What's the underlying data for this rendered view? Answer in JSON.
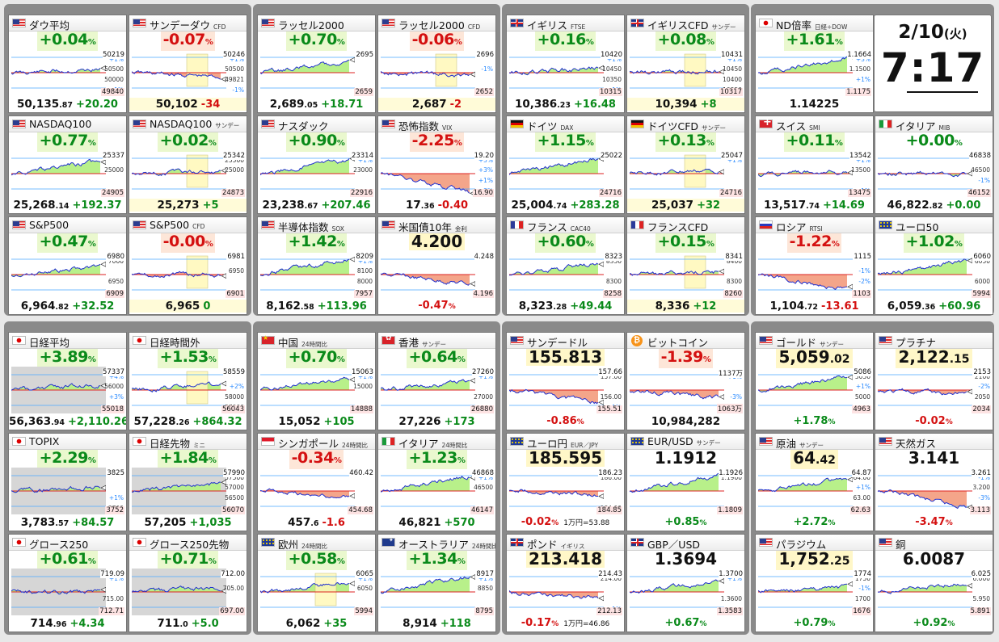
{
  "clock": {
    "date": "2/10",
    "weekday": "(火)",
    "time": "7:17"
  },
  "colors": {
    "up": "#0a8a1a",
    "down": "#d41010",
    "fill_up": "#b8f08a",
    "fill_down": "#f4a58a",
    "line": "#2030d0"
  },
  "tiles": [
    {
      "col": 0,
      "row": 0,
      "flag": "us",
      "name": "ダウ平均",
      "sub": "",
      "pct": "+0.04",
      "dir": "up",
      "trend": 0.2,
      "price": "50,135",
      "dec": ".87",
      "chg": "+20.20",
      "hi": "50219",
      "lo": "49840",
      "ticks": [
        "+1%",
        "50500",
        "50000",
        "-1%"
      ]
    },
    {
      "col": 1,
      "row": 0,
      "flag": "us",
      "name": "サンデーダウ",
      "sub": "CFD",
      "pct": "-0.07",
      "dir": "down",
      "trend": -0.3,
      "price": "50,102",
      "dec": "",
      "chg": "-34",
      "hi": "50246",
      "lo": "",
      "ticks": [
        "+1%",
        "50500",
        "49821",
        "-1%"
      ],
      "bar": true,
      "box": true
    },
    {
      "col": 2,
      "row": 0,
      "flag": "us",
      "name": "ラッセル2000",
      "sub": "",
      "pct": "+0.70",
      "dir": "up",
      "trend": 0.8,
      "price": "2,689",
      "dec": ".05",
      "chg": "+18.71",
      "hi": "2695",
      "lo": "2659",
      "ticks": [
        "",
        "",
        "",
        ""
      ]
    },
    {
      "col": 3,
      "row": 0,
      "flag": "us",
      "name": "ラッセル2000",
      "sub": "CFD",
      "pct": "-0.06",
      "dir": "down",
      "trend": -0.2,
      "price": "2,687",
      "dec": "",
      "chg": "-2",
      "hi": "2696",
      "lo": "2652",
      "ticks": [
        "",
        "-1%",
        "",
        ""
      ],
      "bar": true,
      "box": true
    },
    {
      "col": 4,
      "row": 0,
      "flag": "gb",
      "name": "イギリス",
      "sub": "FTSE",
      "pct": "+0.16",
      "dir": "up",
      "trend": 0.3,
      "price": "10,386",
      "dec": ".23",
      "chg": "+16.48",
      "hi": "10420",
      "lo": "10315",
      "ticks": [
        "+1%",
        "10450",
        "10350",
        "-1%"
      ]
    },
    {
      "col": 5,
      "row": 0,
      "flag": "gb",
      "name": "イギリスCFD",
      "sub": "サンデー",
      "pct": "+0.08",
      "dir": "up",
      "trend": 0.1,
      "price": "10,394",
      "dec": "",
      "chg": "+8",
      "hi": "10431",
      "lo": "10317",
      "ticks": [
        "+1%",
        "10450",
        "10400",
        "10350"
      ],
      "bar": true,
      "box": true
    },
    {
      "col": 6,
      "row": 0,
      "flag": "jp",
      "name": "ND倍率",
      "sub": "日経÷DOW",
      "pct": "+1.61",
      "dir": "up",
      "trend": 0.9,
      "price": "1.14225",
      "dec": "",
      "chg": "",
      "hi": "1.1664",
      "lo": "1.1175",
      "ticks": [
        "+3%",
        "1.1500",
        "+1%",
        ""
      ]
    },
    {
      "col": 0,
      "row": 1,
      "flag": "us",
      "name": "NASDAQ100",
      "sub": "",
      "pct": "+0.77",
      "dir": "up",
      "trend": 0.8,
      "price": "25,268",
      "dec": ".14",
      "chg": "+192.37",
      "hi": "25337",
      "lo": "24905",
      "ticks": [
        "",
        "25000",
        "",
        ""
      ]
    },
    {
      "col": 1,
      "row": 1,
      "flag": "us",
      "name": "NASDAQ100",
      "sub": "サンデー",
      "pct": "+0.02",
      "dir": "up",
      "trend": 0.1,
      "price": "25,273",
      "dec": "",
      "chg": "+5",
      "hi": "25342",
      "lo": "24873",
      "ticks": [
        "25500",
        "25000",
        "",
        ""
      ],
      "bar": true,
      "box": true
    },
    {
      "col": 2,
      "row": 1,
      "flag": "us",
      "name": "ナスダック",
      "sub": "",
      "pct": "+0.90",
      "dir": "up",
      "trend": 0.9,
      "price": "23,238",
      "dec": ".67",
      "chg": "+207.46",
      "hi": "23314",
      "lo": "22916",
      "ticks": [
        "+1%",
        "23000",
        "",
        ""
      ]
    },
    {
      "col": 3,
      "row": 1,
      "flag": "us",
      "name": "恐怖指数",
      "sub": "VIX",
      "pct": "-2.25",
      "dir": "down",
      "trend": -1.2,
      "price": "17",
      "dec": ".36",
      "chg": "-0.40",
      "hi": "19.20",
      "lo": "16.90",
      "ticks": [
        "+5%",
        "+3%",
        "+1%",
        "-3%"
      ],
      "red": true
    },
    {
      "col": 4,
      "row": 1,
      "flag": "de",
      "name": "ドイツ",
      "sub": "DAX",
      "pct": "+1.15",
      "dir": "up",
      "trend": 1.0,
      "price": "25,004",
      "dec": ".74",
      "chg": "+283.28",
      "hi": "25022",
      "lo": "24716",
      "ticks": [
        "",
        "",
        "",
        ""
      ]
    },
    {
      "col": 5,
      "row": 1,
      "flag": "de",
      "name": "ドイツCFD",
      "sub": "サンデー",
      "pct": "+0.13",
      "dir": "up",
      "trend": 0.2,
      "price": "25,037",
      "dec": "",
      "chg": "+32",
      "hi": "25047",
      "lo": "24716",
      "ticks": [
        "+1%",
        "",
        "",
        ""
      ],
      "bar": true,
      "box": true
    },
    {
      "col": 6,
      "row": 1,
      "flag": "ch",
      "name": "スイス",
      "sub": "SMI",
      "pct": "+0.11",
      "dir": "up",
      "trend": 0.1,
      "price": "13,517",
      "dec": ".74",
      "chg": "+14.69",
      "hi": "13542",
      "lo": "13475",
      "ticks": [
        "+1%",
        "13500",
        "",
        "-1%"
      ]
    },
    {
      "col": 7,
      "row": 1,
      "flag": "it",
      "name": "イタリア",
      "sub": "MIB",
      "pct": "+0.00",
      "dir": "flat",
      "trend": 0.0,
      "price": "46,822",
      "dec": ".82",
      "chg": "+0.00",
      "hi": "46838",
      "lo": "46152",
      "ticks": [
        "",
        "46500",
        "-1%",
        ""
      ]
    },
    {
      "col": 0,
      "row": 2,
      "flag": "us",
      "name": "S&P500",
      "sub": "",
      "pct": "+0.47",
      "dir": "up",
      "trend": 0.5,
      "price": "6,964",
      "dec": ".82",
      "chg": "+32.52",
      "hi": "6980",
      "lo": "6909",
      "ticks": [
        "7000",
        "",
        "6950",
        ""
      ]
    },
    {
      "col": 1,
      "row": 2,
      "flag": "us",
      "name": "S&P500",
      "sub": "CFD",
      "pct": "-0.00",
      "dir": "down",
      "trend": 0.0,
      "price": "6,965",
      "dec": "",
      "chg": "0",
      "hi": "6981",
      "lo": "6901",
      "ticks": [
        "",
        "6950",
        "",
        ""
      ],
      "bar": true,
      "box": true
    },
    {
      "col": 2,
      "row": 2,
      "flag": "us",
      "name": "半導体指数",
      "sub": "SOX",
      "pct": "+1.42",
      "dir": "up",
      "trend": 1.0,
      "price": "8,162",
      "dec": ".58",
      "chg": "+113.96",
      "hi": "8209",
      "lo": "7957",
      "ticks": [
        "+1%",
        "8100",
        "8000",
        ""
      ]
    },
    {
      "col": 3,
      "row": 2,
      "flag": "us",
      "name": "米国債10年",
      "sub": "金利",
      "pct": "-0.47",
      "dir": "down",
      "trend": -0.6,
      "bigprice": "4.200",
      "price": "",
      "dec": "",
      "chg": "",
      "hi": "4.248",
      "lo": "4.196",
      "ticks": [
        "",
        "",
        "",
        ""
      ],
      "footpct": "-0.47",
      "footdir": "down"
    },
    {
      "col": 4,
      "row": 2,
      "flag": "fr",
      "name": "フランス",
      "sub": "CAC40",
      "pct": "+0.60",
      "dir": "up",
      "trend": 0.7,
      "price": "8,323",
      "dec": ".28",
      "chg": "+49.44",
      "hi": "8323",
      "lo": "8258",
      "ticks": [
        "8350",
        "",
        "8300",
        ""
      ]
    },
    {
      "col": 5,
      "row": 2,
      "flag": "fr",
      "name": "フランスCFD",
      "sub": "",
      "pct": "+0.15",
      "dir": "up",
      "trend": 0.2,
      "price": "8,336",
      "dec": "",
      "chg": "+12",
      "hi": "8341",
      "lo": "8260",
      "ticks": [
        "8400",
        "",
        "8300",
        ""
      ],
      "bar": true,
      "box": true
    },
    {
      "col": 6,
      "row": 2,
      "flag": "ru",
      "name": "ロシア",
      "sub": "RTSI",
      "pct": "-1.22",
      "dir": "down",
      "trend": -1.0,
      "price": "1,104",
      "dec": ".72",
      "chg": "-13.61",
      "hi": "1115",
      "lo": "1103",
      "ticks": [
        "",
        "-1%",
        "-2%",
        ""
      ]
    },
    {
      "col": 7,
      "row": 2,
      "flag": "eu",
      "name": "ユーロ50",
      "sub": "",
      "pct": "+1.02",
      "dir": "up",
      "trend": 0.9,
      "price": "6,059",
      "dec": ".36",
      "chg": "+60.96",
      "hi": "6060",
      "lo": "5994",
      "ticks": [
        "6050",
        "",
        "6000",
        ""
      ]
    },
    {
      "col": 0,
      "row": 3,
      "flag": "jp",
      "name": "日経平均",
      "sub": "",
      "pct": "+3.89",
      "dir": "up",
      "trend": 0.3,
      "price": "56,363",
      "dec": ".94",
      "chg": "+2,110.26",
      "hi": "57337",
      "lo": "55018",
      "ticks": [
        "+4%",
        "56000",
        "+3%",
        ""
      ],
      "dim": true
    },
    {
      "col": 1,
      "row": 3,
      "flag": "jp",
      "name": "日経時間外",
      "sub": "",
      "pct": "+1.53",
      "dir": "up",
      "trend": 0.4,
      "price": "57,228",
      "dec": ".26",
      "chg": "+864.32",
      "hi": "58559",
      "lo": "56043",
      "ticks": [
        "",
        "+2%",
        "58000",
        "57000"
      ],
      "box": true
    },
    {
      "col": 2,
      "row": 3,
      "flag": "cn",
      "name": "中国",
      "sub": "24時間比",
      "pct": "+0.70",
      "dir": "up",
      "trend": 0.8,
      "price": "15,052",
      "dec": "",
      "chg": "+105",
      "hi": "15063",
      "lo": "14888",
      "ticks": [
        "+1%",
        "15000",
        "",
        ""
      ]
    },
    {
      "col": 3,
      "row": 3,
      "flag": "hk",
      "name": "香港",
      "sub": "サンデー",
      "pct": "+0.64",
      "dir": "up",
      "trend": 0.6,
      "price": "27,226",
      "dec": "",
      "chg": "+173",
      "hi": "27260",
      "lo": "26880",
      "ticks": [
        "+1%",
        "",
        "27000",
        ""
      ]
    },
    {
      "col": 4,
      "row": 3,
      "flag": "us",
      "name": "サンデードル",
      "sub": "",
      "pct": "-0.86",
      "dir": "down",
      "trend": -0.8,
      "bigprice": "155.813",
      "price": "",
      "dec": "",
      "chg": "",
      "hi": "157.66",
      "lo": "155.51",
      "ticks": [
        "157.00",
        "",
        "156.00",
        "-1%"
      ],
      "footpct": "-0.86",
      "footdir": "down"
    },
    {
      "col": 5,
      "row": 3,
      "flag": "btc",
      "name": "ビットコイン",
      "sub": "",
      "pct": "-1.39",
      "dir": "down",
      "trend": -0.5,
      "price": "10,984,282",
      "dec": "",
      "chg": "",
      "hi": "1137万",
      "lo": "1063万",
      "ticks": [
        "+1%",
        "",
        "-3%",
        ""
      ]
    },
    {
      "col": 6,
      "row": 3,
      "flag": "us",
      "name": "ゴールド",
      "sub": "サンデー",
      "pct": "",
      "dir": "up",
      "trend": 0.9,
      "bigprice": "5,059",
      "bigdec": ".02",
      "price": "",
      "dec": "",
      "chg": "",
      "hi": "5086",
      "lo": "4963",
      "ticks": [
        "5050",
        "+1%",
        "5000",
        ""
      ],
      "footpct": "+1.78",
      "footdir": "up"
    },
    {
      "col": 7,
      "row": 3,
      "flag": "us",
      "name": "プラチナ",
      "sub": "",
      "pct": "",
      "dir": "down",
      "trend": -0.2,
      "bigprice": "2,122",
      "bigdec": ".15",
      "price": "",
      "dec": "",
      "chg": "",
      "hi": "2153",
      "lo": "2034",
      "ticks": [
        "2100",
        "-2%",
        "2050",
        ""
      ],
      "footpct": "-0.02",
      "footdir": "down"
    },
    {
      "col": 0,
      "row": 4,
      "flag": "jp",
      "name": "TOPIX",
      "sub": "",
      "pct": "+2.29",
      "dir": "up",
      "trend": 0.3,
      "price": "3,783",
      "dec": ".57",
      "chg": "+84.57",
      "hi": "3825",
      "lo": "3752",
      "ticks": [
        "",
        "",
        "+1%",
        "3700"
      ],
      "dim": true
    },
    {
      "col": 1,
      "row": 4,
      "flag": "jp",
      "name": "日経先物",
      "sub": "ミニ",
      "pct": "+1.84",
      "dir": "up",
      "trend": 0.5,
      "price": "57,205",
      "dec": "",
      "chg": "+1,035",
      "hi": "57990",
      "lo": "56070",
      "ticks": [
        "57500",
        "57000",
        "56500",
        ""
      ],
      "dim": true
    },
    {
      "col": 2,
      "row": 4,
      "flag": "sg",
      "name": "シンガポール",
      "sub": "24時間比",
      "pct": "-0.34",
      "dir": "down",
      "trend": -0.4,
      "price": "457",
      "dec": ".6",
      "chg": "-1.6",
      "hi": "460.42",
      "lo": "454.68",
      "ticks": [
        "",
        "",
        "",
        ""
      ]
    },
    {
      "col": 3,
      "row": 4,
      "flag": "it",
      "name": "イタリア",
      "sub": "24時間比",
      "pct": "+1.23",
      "dir": "up",
      "trend": 1.0,
      "price": "46,821",
      "dec": "",
      "chg": "+570",
      "hi": "46868",
      "lo": "46147",
      "ticks": [
        "+1%",
        "46500",
        "",
        ""
      ]
    },
    {
      "col": 4,
      "row": 4,
      "flag": "eu",
      "name": "ユーロ円",
      "sub": "EUR／JPY",
      "pct": "",
      "dir": "down",
      "trend": -0.3,
      "bigprice": "185.595",
      "price": "",
      "dec": "",
      "chg": "",
      "hi": "186.23",
      "lo": "184.85",
      "ticks": [
        "186.00",
        "",
        "",
        "184.00"
      ],
      "footpct": "-0.02",
      "footdir": "down",
      "footnote": "1万円=53.88"
    },
    {
      "col": 5,
      "row": 4,
      "flag": "eu",
      "name": "EUR/USD",
      "sub": "サンデー",
      "pct": "",
      "dir": "up",
      "trend": 1.0,
      "bigprice": "1.1912",
      "plainbig": true,
      "price": "",
      "dec": "",
      "chg": "",
      "hi": "1.1926",
      "lo": "1.1809",
      "ticks": [
        "1.1900",
        "",
        "",
        ""
      ],
      "footpct": "+0.85",
      "footdir": "up"
    },
    {
      "col": 6,
      "row": 4,
      "flag": "us",
      "name": "原油",
      "sub": "サンデー",
      "pct": "",
      "dir": "up",
      "trend": 0.8,
      "bigprice": "64",
      "bigdec": ".42",
      "price": "",
      "dec": "",
      "chg": "",
      "hi": "64.87",
      "lo": "62.63",
      "ticks": [
        "64.00",
        "+1%",
        "63.00",
        ""
      ],
      "footpct": "+2.72",
      "footdir": "up"
    },
    {
      "col": 7,
      "row": 4,
      "flag": "us",
      "name": "天然ガス",
      "sub": "",
      "pct": "",
      "dir": "down",
      "trend": -1.0,
      "bigprice": "3.141",
      "plainbig": true,
      "price": "",
      "dec": "",
      "chg": "",
      "hi": "3.261",
      "lo": "3.113",
      "ticks": [
        "-1%",
        "3.200",
        "-3%",
        ""
      ],
      "footpct": "-3.47",
      "footdir": "down"
    },
    {
      "col": 0,
      "row": 5,
      "flag": "jp",
      "name": "グロース250",
      "sub": "",
      "pct": "+0.61",
      "dir": "up",
      "trend": 0.0,
      "price": "714",
      "dec": ".96",
      "chg": "+4.34",
      "hi": "719.09",
      "lo": "712.71",
      "ticks": [
        "+1%",
        "",
        "715.00",
        ""
      ],
      "dim": true
    },
    {
      "col": 1,
      "row": 5,
      "flag": "jp",
      "name": "グロース250先物",
      "sub": "",
      "pct": "+0.71",
      "dir": "up",
      "trend": 0.3,
      "price": "711",
      "dec": ".0",
      "chg": "+5.0",
      "hi": "712.00",
      "lo": "697.00",
      "ticks": [
        "",
        "705.00",
        "",
        ""
      ],
      "dim": true
    },
    {
      "col": 2,
      "row": 5,
      "flag": "eu",
      "name": "欧州",
      "sub": "24時間比",
      "pct": "+0.58",
      "dir": "up",
      "trend": 0.6,
      "price": "6,062",
      "dec": "",
      "chg": "+35",
      "hi": "6065",
      "lo": "5994",
      "ticks": [
        "+1%",
        "6050",
        "",
        ""
      ],
      "box": true
    },
    {
      "col": 3,
      "row": 5,
      "flag": "au",
      "name": "オーストラリア",
      "sub": "24時間比",
      "pct": "+1.34",
      "dir": "up",
      "trend": 1.0,
      "price": "8,914",
      "dec": "",
      "chg": "+118",
      "hi": "8917",
      "lo": "8795",
      "ticks": [
        "+1%",
        "8850",
        "",
        ""
      ]
    },
    {
      "col": 4,
      "row": 5,
      "flag": "gb",
      "name": "ポンド",
      "sub": "イギリス",
      "pct": "",
      "dir": "down",
      "trend": -0.4,
      "bigprice": "213.418",
      "price": "",
      "dec": "",
      "chg": "",
      "hi": "214.43",
      "lo": "212.13",
      "ticks": [
        "214.00",
        "",
        "",
        "-1%"
      ],
      "footpct": "-0.17",
      "footdir": "down",
      "footnote": "1万円=46.86"
    },
    {
      "col": 5,
      "row": 5,
      "flag": "gb",
      "name": "GBP／USD",
      "sub": "",
      "pct": "",
      "dir": "up",
      "trend": 0.7,
      "bigprice": "1.3694",
      "plainbig": true,
      "price": "",
      "dec": "",
      "chg": "",
      "hi": "1.3700",
      "lo": "1.3583",
      "ticks": [
        "+1%",
        "",
        "1.3600",
        ""
      ],
      "footpct": "+0.67",
      "footdir": "up"
    },
    {
      "col": 6,
      "row": 5,
      "flag": "us",
      "name": "パラジウム",
      "sub": "",
      "pct": "",
      "dir": "up",
      "trend": 0.3,
      "bigprice": "1,752",
      "bigdec": ".25",
      "price": "",
      "dec": "",
      "chg": "",
      "hi": "1774",
      "lo": "1676",
      "ticks": [
        "1750",
        "-1%",
        "1700",
        ""
      ],
      "footpct": "+0.79",
      "footdir": "up"
    },
    {
      "col": 7,
      "row": 5,
      "flag": "us",
      "name": "銅",
      "sub": "",
      "pct": "",
      "dir": "up",
      "trend": 0.6,
      "bigprice": "6.0087",
      "plainbig": true,
      "price": "",
      "dec": "",
      "chg": "",
      "hi": "6.025",
      "lo": "5.891",
      "ticks": [
        "6.000",
        "",
        "5.950",
        ""
      ],
      "footpct": "+0.92",
      "footdir": "up"
    }
  ]
}
